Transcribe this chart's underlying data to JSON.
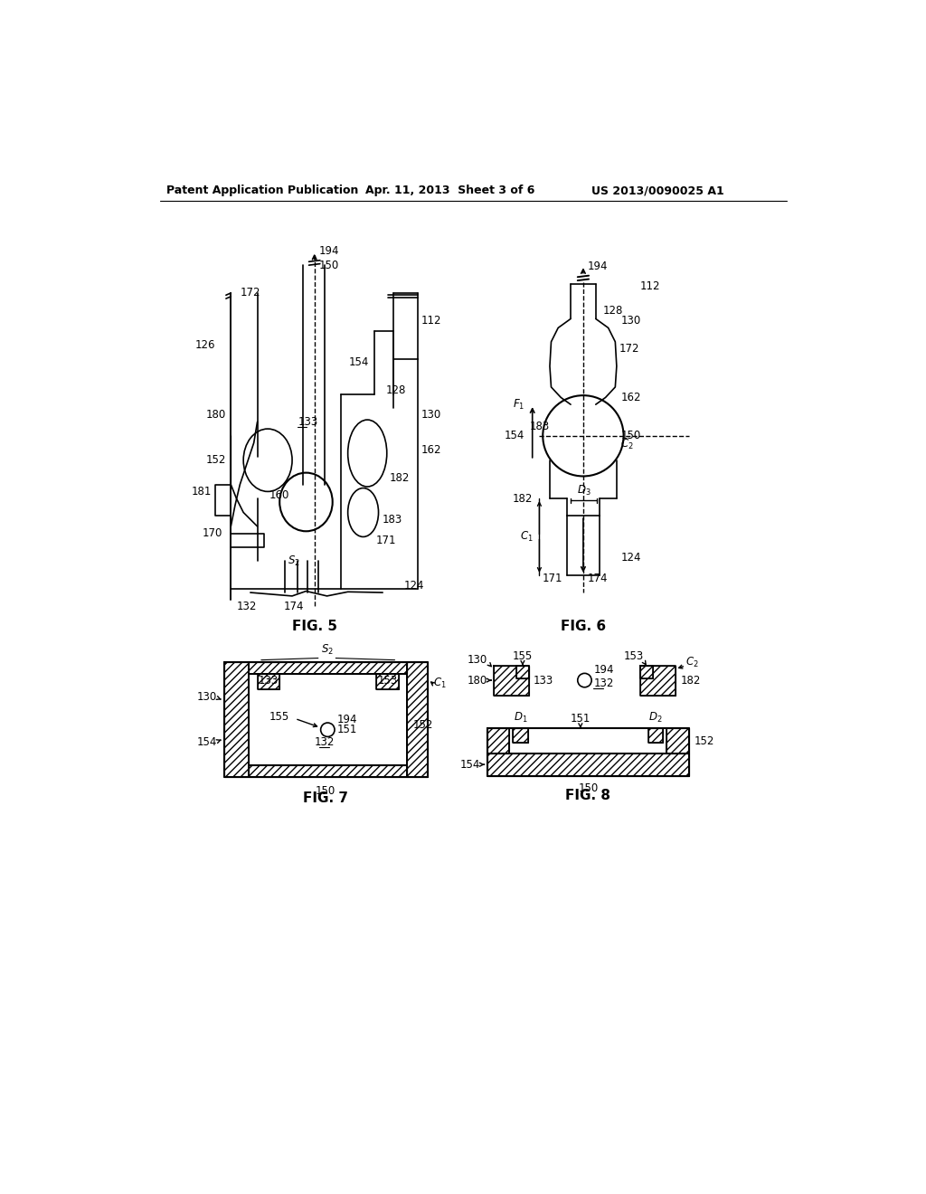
{
  "title_left": "Patent Application Publication",
  "title_mid": "Apr. 11, 2013  Sheet 3 of 6",
  "title_right": "US 2013/0090025 A1",
  "fig5_label": "FIG. 5",
  "fig6_label": "FIG. 6",
  "fig7_label": "FIG. 7",
  "fig8_label": "FIG. 8",
  "background": "#ffffff"
}
